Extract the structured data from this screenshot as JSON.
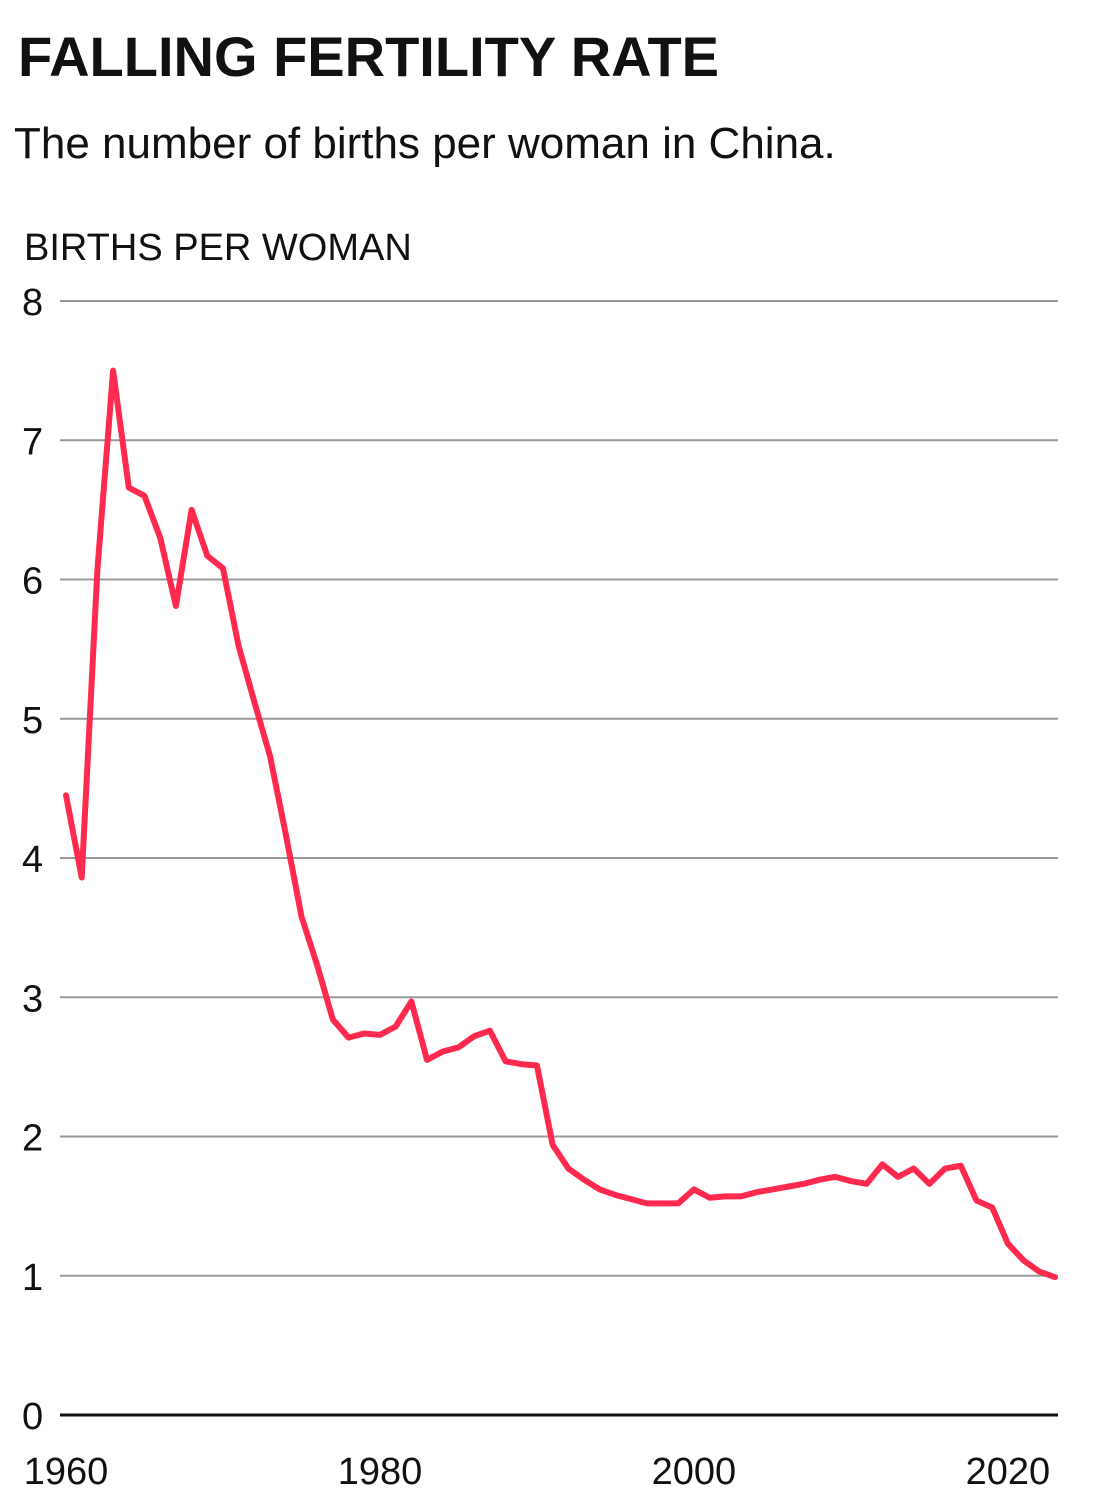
{
  "chart_data": {
    "type": "line",
    "title": "FALLING FERTILITY RATE",
    "subtitle": "The number of births per woman in China.",
    "y_label": "BIRTHS PER WOMAN",
    "x": [
      1960,
      1961,
      1962,
      1963,
      1964,
      1965,
      1966,
      1967,
      1968,
      1969,
      1970,
      1971,
      1972,
      1973,
      1974,
      1975,
      1976,
      1977,
      1978,
      1979,
      1980,
      1981,
      1982,
      1983,
      1984,
      1985,
      1986,
      1987,
      1988,
      1989,
      1990,
      1991,
      1992,
      1993,
      1994,
      1995,
      1996,
      1997,
      1998,
      1999,
      2000,
      2001,
      2002,
      2003,
      2004,
      2005,
      2006,
      2007,
      2008,
      2009,
      2010,
      2011,
      2012,
      2013,
      2014,
      2015,
      2016,
      2017,
      2018,
      2019,
      2020,
      2021,
      2022,
      2023
    ],
    "series": [
      {
        "name": "Births per woman",
        "color": "#ff2a4d",
        "values": [
          4.45,
          3.86,
          6.07,
          7.5,
          6.66,
          6.6,
          6.3,
          5.81,
          6.5,
          6.17,
          6.08,
          5.52,
          5.12,
          4.73,
          4.17,
          3.58,
          3.23,
          2.84,
          2.71,
          2.74,
          2.73,
          2.79,
          2.97,
          2.55,
          2.61,
          2.64,
          2.72,
          2.76,
          2.54,
          2.52,
          2.51,
          1.94,
          1.77,
          1.69,
          1.62,
          1.58,
          1.55,
          1.52,
          1.52,
          1.52,
          1.62,
          1.56,
          1.57,
          1.57,
          1.6,
          1.62,
          1.64,
          1.66,
          1.69,
          1.71,
          1.68,
          1.66,
          1.8,
          1.71,
          1.77,
          1.66,
          1.77,
          1.79,
          1.54,
          1.49,
          1.23,
          1.11,
          1.03,
          0.99
        ]
      }
    ],
    "xlim": [
      1960,
      2023
    ],
    "xticks": [
      1960,
      1980,
      2000,
      2020
    ],
    "ylim": [
      0,
      8
    ],
    "yticks": [
      0,
      1,
      2,
      3,
      4,
      5,
      6,
      7,
      8
    ],
    "grid": true
  }
}
